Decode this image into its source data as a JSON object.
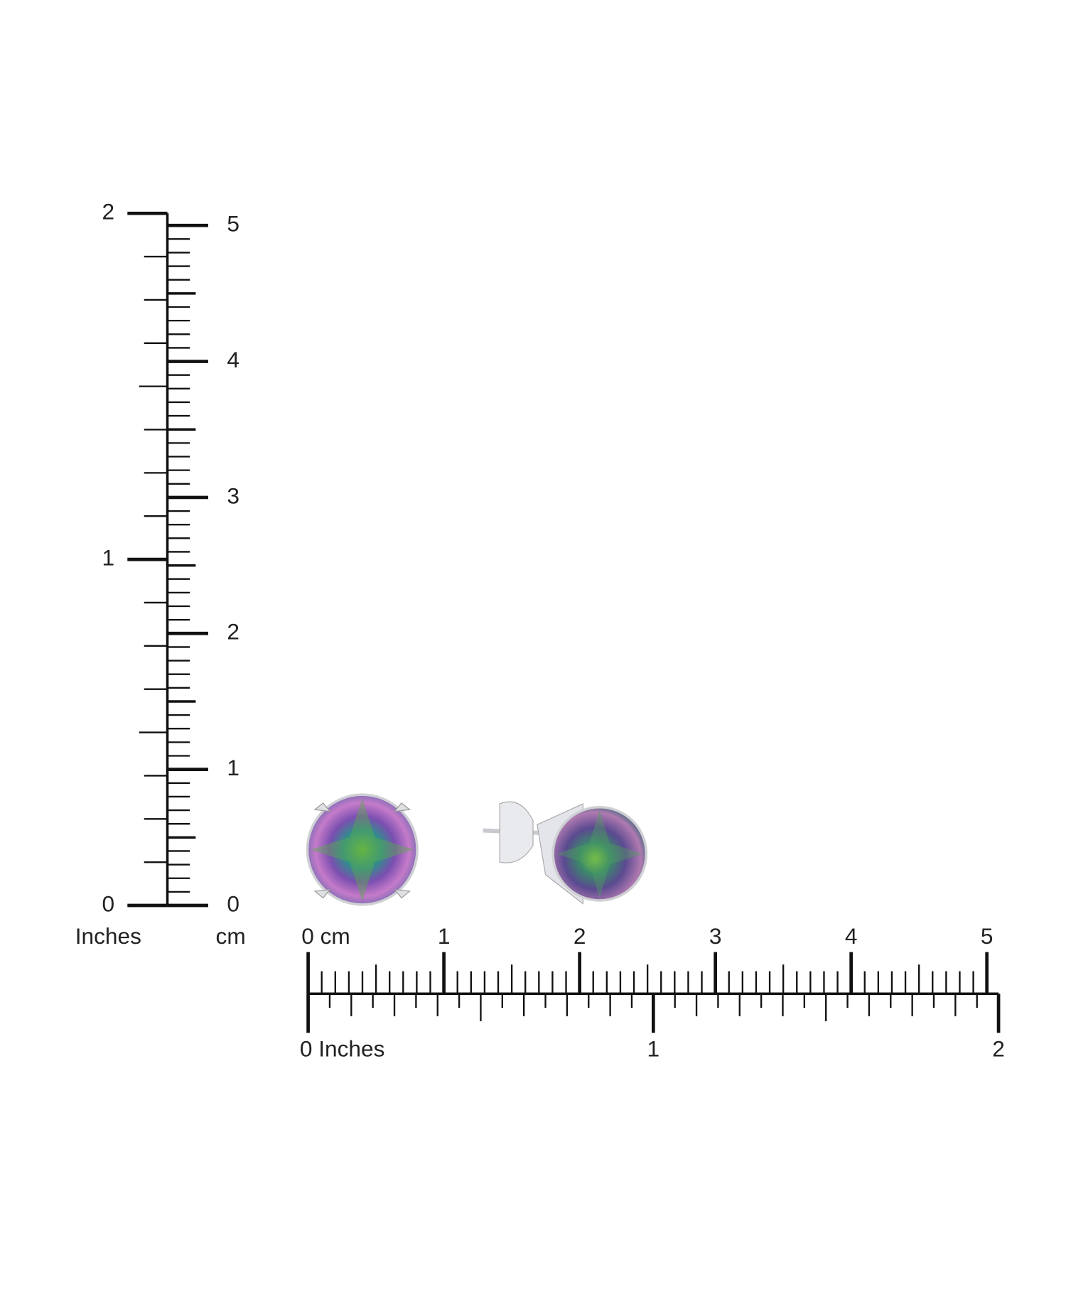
{
  "vertical_ruler": {
    "inch_labels": [
      "0",
      "1",
      "2"
    ],
    "inch_unit": "Inches",
    "cm_labels": [
      "0",
      "1",
      "2",
      "3",
      "4",
      "5"
    ],
    "cm_unit": "cm"
  },
  "horizontal_ruler": {
    "cm_labels": [
      "0 cm",
      "1",
      "2",
      "3",
      "4",
      "5"
    ],
    "inch_labels": [
      "0 Inches",
      "1",
      "2"
    ]
  }
}
